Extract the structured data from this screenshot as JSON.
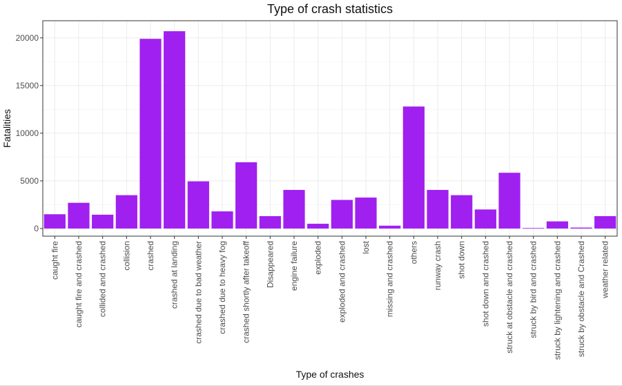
{
  "chart_data": {
    "type": "bar",
    "title": "Type of crash statistics",
    "xlabel": "Type of crashes",
    "ylabel": "Fatalities",
    "ylim": [
      -800,
      21800
    ],
    "yticks": [
      0,
      5000,
      10000,
      15000,
      20000
    ],
    "grid": true,
    "bar_color": "#A020F0",
    "categories": [
      "caught fire",
      "caught fire and crashed",
      "collided and crashed",
      "collision",
      "crashed",
      "crashed at landing",
      "crashed due to bad weather",
      "crashed due to heavy fog",
      "crashed shortly after takeoff",
      "Disappeared",
      "engine failure",
      "exploded",
      "exploded and crashed",
      "lost",
      "missing and crashed",
      "others",
      "runway crash",
      "shot down",
      "shot down and crashed",
      "struck at obstacle and crashed",
      "struck by bird and crashed",
      "struck by lightening and crashed",
      "struck by obstacle and Crashed",
      "weather related"
    ],
    "values": [
      1500,
      2700,
      1450,
      3500,
      19900,
      20700,
      4950,
      1800,
      6950,
      1300,
      4050,
      500,
      3000,
      3250,
      300,
      12800,
      4050,
      3500,
      2000,
      5850,
      20,
      750,
      100,
      1300
    ]
  }
}
